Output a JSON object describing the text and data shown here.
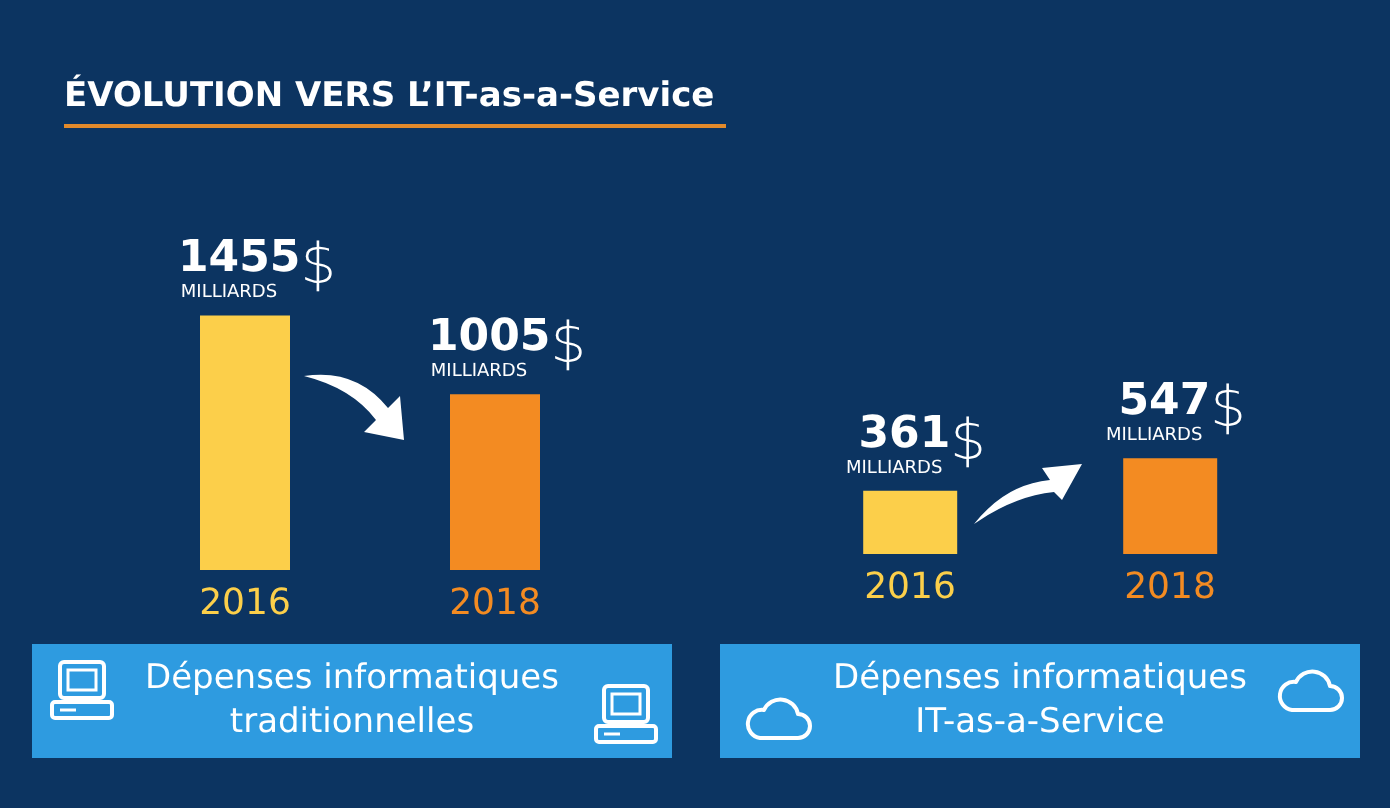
{
  "chart_data": [
    {
      "type": "bar",
      "title": "ÉVOLUTION VERS L’IT-as-a-Service",
      "xlabel": "Dépenses informatiques traditionnelles",
      "categories": [
        "2016",
        "2018"
      ],
      "values": [
        1455,
        1005
      ],
      "colors": [
        "#fccf4a",
        "#f38b22"
      ],
      "value_labels": [
        "1455$ MILLIARDS",
        "1005$ MILLIARDS"
      ]
    },
    {
      "type": "bar",
      "xlabel": "Dépenses informatiques IT-as-a-Service",
      "categories": [
        "2016",
        "2018"
      ],
      "values": [
        361,
        547
      ],
      "colors": [
        "#fccf4a",
        "#f38b22"
      ],
      "value_labels": [
        "361$ MILLIARDS",
        "547$ MILLIARDS"
      ]
    }
  ]
}
